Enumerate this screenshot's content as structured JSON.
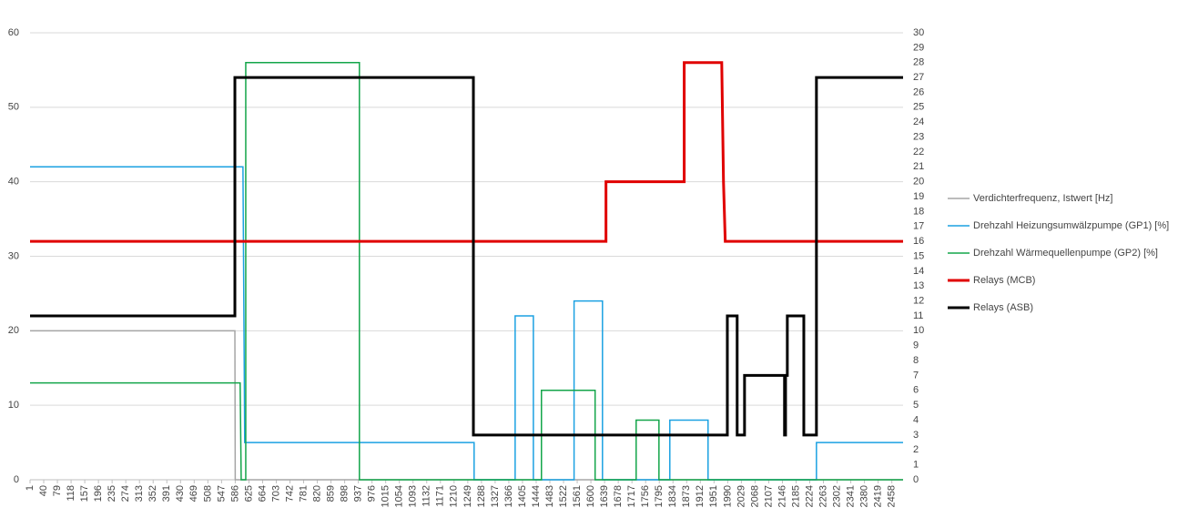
{
  "chart_data": {
    "type": "line",
    "xlim": [
      1,
      2490
    ],
    "xticks": [
      1,
      40,
      79,
      118,
      157,
      196,
      235,
      274,
      313,
      352,
      391,
      430,
      469,
      508,
      547,
      586,
      625,
      664,
      703,
      742,
      781,
      820,
      859,
      898,
      937,
      976,
      1015,
      1054,
      1093,
      1132,
      1171,
      1210,
      1249,
      1288,
      1327,
      1366,
      1405,
      1444,
      1483,
      1522,
      1561,
      1600,
      1639,
      1678,
      1717,
      1756,
      1795,
      1834,
      1873,
      1912,
      1951,
      1990,
      2029,
      2068,
      2107,
      2146,
      2185,
      2224,
      2263,
      2302,
      2341,
      2380,
      2419,
      2458
    ],
    "ylim": [
      0,
      60
    ],
    "yticks": [
      0,
      10,
      20,
      30,
      40,
      50,
      60
    ],
    "y2lim": [
      0,
      30
    ],
    "y2ticks": [
      0,
      1,
      2,
      3,
      4,
      5,
      6,
      7,
      8,
      9,
      10,
      11,
      12,
      13,
      14,
      15,
      16,
      17,
      18,
      19,
      20,
      21,
      22,
      23,
      24,
      25,
      26,
      27,
      28,
      29,
      30
    ],
    "grid": true,
    "legend": "right",
    "series": [
      {
        "name": "Verdichterfrequenz, Istwert [Hz]",
        "color": "#a5a5a5",
        "width": 1.5,
        "x": [
          1,
          585,
          586,
          2490
        ],
        "values": [
          20,
          20,
          0,
          0
        ]
      },
      {
        "name": "Drehzahl Heizungsumwälzpumpe (GP1) [%]",
        "color": "#1ba1e2",
        "width": 1.5,
        "x": [
          1,
          608,
          613,
          1267,
          1267,
          1384,
          1384,
          1436,
          1436,
          1552,
          1552,
          1633,
          1633,
          1825,
          1825,
          1934,
          1934,
          2243,
          2243,
          2490
        ],
        "values": [
          42,
          42,
          5,
          5,
          0,
          0,
          22,
          22,
          0,
          0,
          24,
          24,
          0,
          0,
          8,
          8,
          0,
          0,
          5,
          5
        ]
      },
      {
        "name": "Drehzahl Wärmequellenpumpe (GP2) [%]",
        "color": "#13a54a",
        "width": 1.5,
        "x": [
          1,
          600,
          603,
          616,
          616,
          940,
          940,
          1459,
          1459,
          1612,
          1612,
          1729,
          1729,
          1794,
          1794,
          2490
        ],
        "values": [
          13,
          13,
          0,
          0,
          56,
          56,
          0,
          0,
          12,
          12,
          0,
          0,
          8,
          8,
          0,
          0
        ]
      },
      {
        "name": "Relays (MCB)",
        "color": "#e00000",
        "width": 3,
        "axis": "y2",
        "x": [
          1,
          1643,
          1643,
          1866,
          1866,
          1973,
          1978,
          1983,
          2490
        ],
        "values": [
          16,
          16,
          20,
          20,
          28,
          28,
          20,
          16,
          16
        ]
      },
      {
        "name": "Relays (ASB)",
        "color": "#000000",
        "width": 3,
        "axis": "y2",
        "x": [
          1,
          585,
          585,
          1265,
          1265,
          1989,
          1989,
          2017,
          2017,
          2038,
          2038,
          2152,
          2152,
          2155,
          2155,
          2160,
          2160,
          2207,
          2207,
          2243,
          2243,
          2490
        ],
        "values": [
          11,
          11,
          27,
          27,
          3,
          3,
          11,
          11,
          3,
          3,
          7,
          7,
          3,
          3,
          7,
          7,
          11,
          11,
          3,
          3,
          27,
          27
        ]
      }
    ]
  }
}
